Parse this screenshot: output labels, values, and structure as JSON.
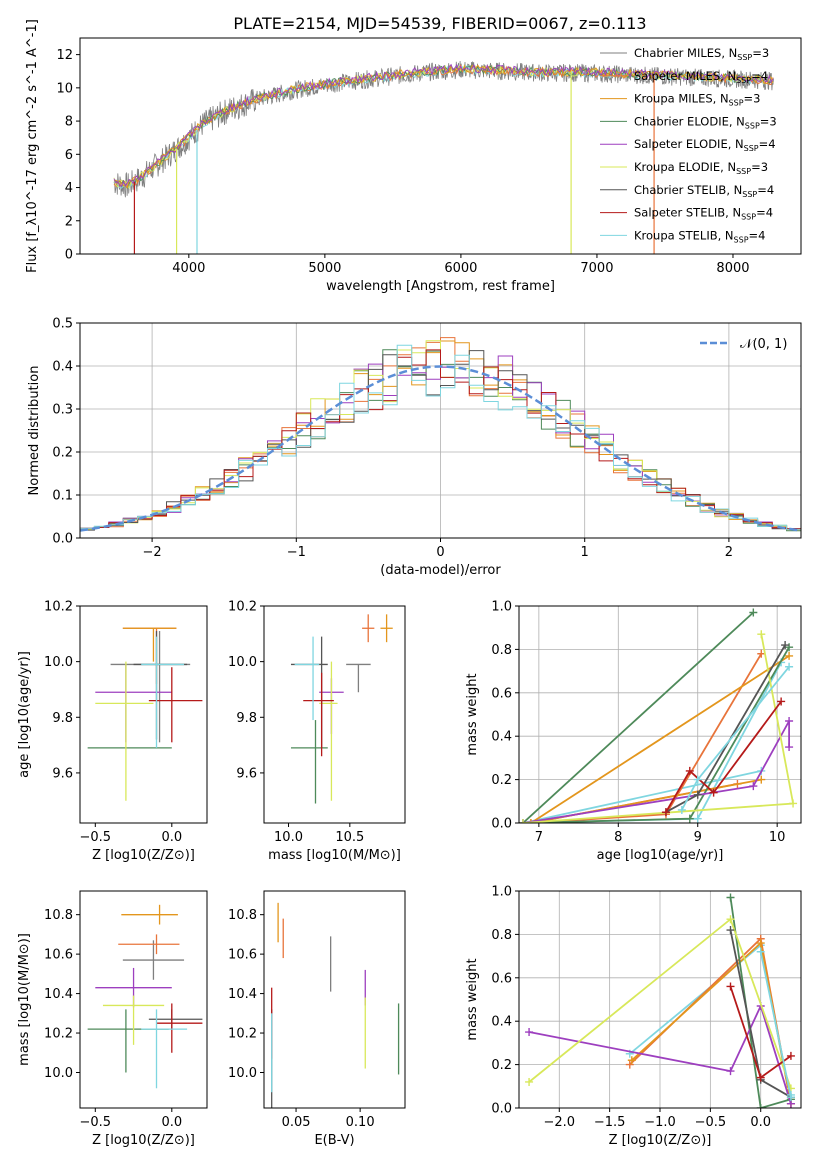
{
  "title": "PLATE=2154, MJD=54539, FIBERID=0067, z=0.113",
  "colors": [
    "#7f7f7f",
    "#e8743b",
    "#e3961d",
    "#4e8a5a",
    "#9d3fbf",
    "#d8e85a",
    "#555555",
    "#b51a1a",
    "#7fd6e0"
  ],
  "legend": [
    {
      "pre": "Chabrier MILES, N",
      "sub": "SSP",
      "post": "=3"
    },
    {
      "pre": "Salpeter MILES, N",
      "sub": "SSP",
      "post": "=4"
    },
    {
      "pre": "Kroupa MILES, N",
      "sub": "SSP",
      "post": "=3"
    },
    {
      "pre": "Chabrier ELODIE, N",
      "sub": "SSP",
      "post": "=3"
    },
    {
      "pre": "Salpeter ELODIE, N",
      "sub": "SSP",
      "post": "=4"
    },
    {
      "pre": "Kroupa ELODIE, N",
      "sub": "SSP",
      "post": "=3"
    },
    {
      "pre": "Chabrier STELIB, N",
      "sub": "SSP",
      "post": "=4"
    },
    {
      "pre": "Salpeter STELIB, N",
      "sub": "SSP",
      "post": "=4"
    },
    {
      "pre": "Kroupa STELIB, N",
      "sub": "SSP",
      "post": "=4"
    }
  ],
  "chart_data": [
    {
      "type": "line",
      "panel": "spectrum",
      "xlabel": "wavelength [Angstrom, rest frame]",
      "ylabel": "Flux [f_λ10^-17 erg cm^-2 s^-1 A^-1]",
      "xlim": [
        3200,
        8500
      ],
      "ylim": [
        0,
        13
      ],
      "xticks": [
        4000,
        5000,
        6000,
        7000,
        8000
      ],
      "yticks": [
        0,
        2,
        4,
        6,
        8,
        10,
        12
      ],
      "continuum": {
        "x": [
          3450,
          3550,
          3650,
          3800,
          3950,
          4100,
          4300,
          4500,
          4800,
          5100,
          5400,
          5700,
          6000,
          6300,
          6600,
          6900,
          7200,
          7500,
          7800,
          8100,
          8300
        ],
        "y": [
          4.3,
          4.1,
          4.6,
          5.6,
          6.6,
          7.8,
          8.7,
          9.3,
          9.9,
          10.3,
          10.6,
          10.9,
          11.1,
          11.0,
          10.9,
          10.9,
          10.8,
          10.7,
          10.6,
          10.5,
          10.4
        ]
      }
    },
    {
      "type": "line",
      "panel": "residual-histogram",
      "xlabel": "(data-model)/error",
      "ylabel": "Normed distribution",
      "xlim": [
        -2.5,
        2.5
      ],
      "ylim": [
        0,
        0.5
      ],
      "xticks": [
        -2,
        -1,
        0,
        1,
        2
      ],
      "yticks": [
        0.0,
        0.1,
        0.2,
        0.3,
        0.4,
        0.5
      ],
      "gaussian_label": "𝒩(0, 1)",
      "gaussian": {
        "mu": 0,
        "sigma": 1
      }
    },
    {
      "type": "scatter",
      "panel": "age-vs-Z",
      "xlabel": "Z [log10(Z/Z⊙)]",
      "ylabel": "age [log10(age/yr)]",
      "xlim": [
        -0.6,
        0.23
      ],
      "ylim": [
        9.42,
        10.2
      ],
      "xticks": [
        -0.5,
        0.0
      ],
      "yticks": [
        9.6,
        9.8,
        10.0,
        10.2
      ],
      "points": [
        {
          "x": -0.08,
          "y": 9.99,
          "xerr": [
            0.32,
            0.2
          ],
          "yerr": [
            0.28,
            0.12
          ]
        },
        {
          "x": -0.1,
          "y": 10.12,
          "xerr": [
            0.22,
            0.13
          ],
          "yerr": [
            0.2,
            0.0
          ]
        },
        {
          "x": -0.12,
          "y": 10.12,
          "xerr": [
            0.2,
            0.15
          ],
          "yerr": [
            0.12,
            0.0
          ]
        },
        {
          "x": -0.55,
          "y": 9.69,
          "xerr": [
            0.0,
            0.55
          ],
          "yerr": [
            0.0,
            0.0
          ]
        },
        {
          "x": -0.3,
          "y": 9.89,
          "xerr": [
            0.2,
            0.3
          ],
          "yerr": [
            0.18,
            0.1
          ]
        },
        {
          "x": -0.3,
          "y": 9.85,
          "xerr": [
            0.2,
            0.18
          ],
          "yerr": [
            0.35,
            0.15
          ]
        },
        {
          "x": -0.1,
          "y": 9.99,
          "xerr": [
            0.15,
            0.2
          ],
          "yerr": [
            0.27,
            0.12
          ]
        },
        {
          "x": 0.0,
          "y": 9.86,
          "xerr": [
            0.15,
            0.2
          ],
          "yerr": [
            0.15,
            0.12
          ]
        },
        {
          "x": -0.1,
          "y": 9.99,
          "xerr": [
            0.1,
            0.18
          ],
          "yerr": [
            0.3,
            0.1
          ]
        }
      ]
    },
    {
      "type": "scatter",
      "panel": "age-vs-mass",
      "xlabel": "mass [log10(M/M⊙)]",
      "ylabel": "",
      "xlim": [
        9.8,
        10.95
      ],
      "ylim": [
        9.42,
        10.2
      ],
      "xticks": [
        10.0,
        10.5
      ],
      "yticks": [
        9.6,
        9.8,
        10.0,
        10.2
      ],
      "points": [
        {
          "x": 10.57,
          "y": 9.99,
          "xerr": [
            0.1,
            0.1
          ],
          "yerr": [
            0.1,
            0.0
          ]
        },
        {
          "x": 10.65,
          "y": 10.12,
          "xerr": [
            0.05,
            0.05
          ],
          "yerr": [
            0.05,
            0.05
          ]
        },
        {
          "x": 10.8,
          "y": 10.12,
          "xerr": [
            0.05,
            0.05
          ],
          "yerr": [
            0.05,
            0.05
          ]
        },
        {
          "x": 10.22,
          "y": 9.69,
          "xerr": [
            0.2,
            0.1
          ],
          "yerr": [
            0.2,
            0.1
          ]
        },
        {
          "x": 10.35,
          "y": 9.89,
          "xerr": [
            0.1,
            0.1
          ],
          "yerr": [
            0.15,
            0.05
          ]
        },
        {
          "x": 10.35,
          "y": 9.85,
          "xerr": [
            0.1,
            0.05
          ],
          "yerr": [
            0.35,
            0.15
          ]
        },
        {
          "x": 10.27,
          "y": 9.99,
          "xerr": [
            0.25,
            0.05
          ],
          "yerr": [
            0.3,
            0.1
          ]
        },
        {
          "x": 10.27,
          "y": 9.86,
          "xerr": [
            0.15,
            0.1
          ],
          "yerr": [
            0.2,
            0.1
          ]
        },
        {
          "x": 10.2,
          "y": 9.99,
          "xerr": [
            0.15,
            0.05
          ],
          "yerr": [
            0.2,
            0.1
          ]
        }
      ]
    },
    {
      "type": "line",
      "panel": "mass-weight-vs-age",
      "xlabel": "age [log10(age/yr)]",
      "ylabel": "mass weight",
      "xlim": [
        6.75,
        10.3
      ],
      "ylim": [
        0,
        1
      ],
      "xticks": [
        7,
        8,
        9,
        10
      ],
      "yticks": [
        0.0,
        0.2,
        0.4,
        0.6,
        0.8,
        1.0
      ],
      "series": [
        {
          "x": [
            9.8,
            6.8,
            9.0,
            10.05
          ],
          "y": [
            0.24,
            0.0,
            0.02,
            0.74
          ]
        },
        {
          "x": [
            9.5,
            6.9,
            8.6,
            9.8
          ],
          "y": [
            0.18,
            0.0,
            0.04,
            0.78
          ]
        },
        {
          "x": [
            9.8,
            6.9,
            10.15
          ],
          "y": [
            0.2,
            0.0,
            0.77
          ]
        },
        {
          "x": [
            9.7,
            6.8,
            8.9,
            10.15
          ],
          "y": [
            0.97,
            0.0,
            0.02,
            0.81
          ]
        },
        {
          "x": [
            6.8,
            9.7,
            10.15,
            10.15
          ],
          "y": [
            0.0,
            0.17,
            0.47,
            0.35
          ]
        },
        {
          "x": [
            9.8,
            10.2,
            6.8
          ],
          "y": [
            0.87,
            0.09,
            0.0
          ]
        },
        {
          "x": [
            8.6,
            9.0,
            10.1
          ],
          "y": [
            0.05,
            0.13,
            0.82
          ]
        },
        {
          "x": [
            8.6,
            8.9,
            9.2,
            10.05
          ],
          "y": [
            0.05,
            0.24,
            0.14,
            0.56
          ]
        },
        {
          "x": [
            8.8,
            9.0,
            10.15
          ],
          "y": [
            0.06,
            0.2,
            0.72
          ]
        }
      ]
    },
    {
      "type": "scatter",
      "panel": "mass-vs-Z",
      "xlabel": "Z [log10(Z/Z⊙)]",
      "ylabel": "mass [log10(M/M⊙)]",
      "xlim": [
        -0.6,
        0.23
      ],
      "ylim": [
        9.82,
        10.92
      ],
      "xticks": [
        -0.5,
        0.0
      ],
      "yticks": [
        10.0,
        10.2,
        10.4,
        10.6,
        10.8
      ],
      "points": [
        {
          "x": -0.12,
          "y": 10.57,
          "xerr": [
            0.2,
            0.2
          ],
          "yerr": [
            0.1,
            0.1
          ]
        },
        {
          "x": -0.1,
          "y": 10.65,
          "xerr": [
            0.25,
            0.15
          ],
          "yerr": [
            0.05,
            0.05
          ]
        },
        {
          "x": -0.08,
          "y": 10.8,
          "xerr": [
            0.25,
            0.12
          ],
          "yerr": [
            0.05,
            0.05
          ]
        },
        {
          "x": -0.3,
          "y": 10.22,
          "xerr": [
            0.25,
            0.28
          ],
          "yerr": [
            0.22,
            0.1
          ]
        },
        {
          "x": -0.25,
          "y": 10.43,
          "xerr": [
            0.25,
            0.25
          ],
          "yerr": [
            0.1,
            0.1
          ]
        },
        {
          "x": -0.25,
          "y": 10.34,
          "xerr": [
            0.2,
            0.2
          ],
          "yerr": [
            0.2,
            0.05
          ]
        },
        {
          "x": 0.0,
          "y": 10.27,
          "xerr": [
            0.15,
            0.2
          ],
          "yerr": [
            0.05,
            0.05
          ]
        },
        {
          "x": 0.0,
          "y": 10.25,
          "xerr": [
            0.1,
            0.2
          ],
          "yerr": [
            0.15,
            0.1
          ]
        },
        {
          "x": -0.1,
          "y": 10.22,
          "xerr": [
            0.1,
            0.2
          ],
          "yerr": [
            0.3,
            0.1
          ]
        }
      ]
    },
    {
      "type": "scatter",
      "panel": "mass-vs-EBV",
      "xlabel": "E(B-V)",
      "ylabel": "",
      "xlim": [
        0.025,
        0.135
      ],
      "ylim": [
        9.82,
        10.92
      ],
      "xticks": [
        0.05,
        0.1
      ],
      "yticks": [
        10.0,
        10.2,
        10.4,
        10.6,
        10.8
      ],
      "points": [
        {
          "x": 0.077,
          "y": 10.55,
          "yerr": [
            0.14,
            0.14
          ]
        },
        {
          "x": 0.04,
          "y": 10.68,
          "yerr": [
            0.1,
            0.1
          ]
        },
        {
          "x": 0.036,
          "y": 10.76,
          "yerr": [
            0.1,
            0.1
          ]
        },
        {
          "x": 0.13,
          "y": 10.17,
          "yerr": [
            0.18,
            0.18
          ]
        },
        {
          "x": 0.104,
          "y": 10.43,
          "yerr": [
            0.09,
            0.09
          ]
        },
        {
          "x": 0.104,
          "y": 10.2,
          "yerr": [
            0.18,
            0.18
          ]
        },
        {
          "x": 0.031,
          "y": 10.07,
          "yerr": [
            0.25,
            0.25
          ]
        },
        {
          "x": 0.031,
          "y": 10.25,
          "yerr": [
            0.18,
            0.18
          ]
        },
        {
          "x": 0.031,
          "y": 10.1,
          "yerr": [
            0.2,
            0.2
          ]
        }
      ]
    },
    {
      "type": "line",
      "panel": "mass-weight-vs-Z",
      "xlabel": "Z [log10(Z/Z⊙)]",
      "ylabel": "mass weight",
      "xlim": [
        -2.4,
        0.4
      ],
      "ylim": [
        0,
        1
      ],
      "xticks": [
        -2.0,
        -1.5,
        -1.0,
        -0.5,
        0.0
      ],
      "yticks": [
        0.0,
        0.2,
        0.4,
        0.6,
        0.8,
        1.0
      ],
      "series": [
        {
          "x": [
            -1.3,
            0.0,
            0.3
          ],
          "y": [
            0.25,
            0.75,
            0.02
          ]
        },
        {
          "x": [
            -1.3,
            0.0,
            0.3
          ],
          "y": [
            0.2,
            0.78,
            0.02
          ]
        },
        {
          "x": [
            -1.28,
            0.0,
            0.3
          ],
          "y": [
            0.22,
            0.76,
            0.02
          ]
        },
        {
          "x": [
            -0.3,
            0.0,
            0.3
          ],
          "y": [
            0.97,
            0.0,
            0.04
          ]
        },
        {
          "x": [
            -2.3,
            -0.3,
            0.0,
            0.3
          ],
          "y": [
            0.35,
            0.17,
            0.47,
            0.02
          ]
        },
        {
          "x": [
            -2.3,
            -0.3,
            0.3
          ],
          "y": [
            0.12,
            0.87,
            0.09
          ]
        },
        {
          "x": [
            -0.3,
            0.0,
            0.3
          ],
          "y": [
            0.82,
            0.13,
            0.05
          ]
        },
        {
          "x": [
            -0.3,
            0.0,
            0.3
          ],
          "y": [
            0.56,
            0.14,
            0.24
          ]
        },
        {
          "x": [
            0.0,
            0.3,
            0.3
          ],
          "y": [
            0.72,
            0.05,
            0.06
          ]
        }
      ]
    }
  ]
}
